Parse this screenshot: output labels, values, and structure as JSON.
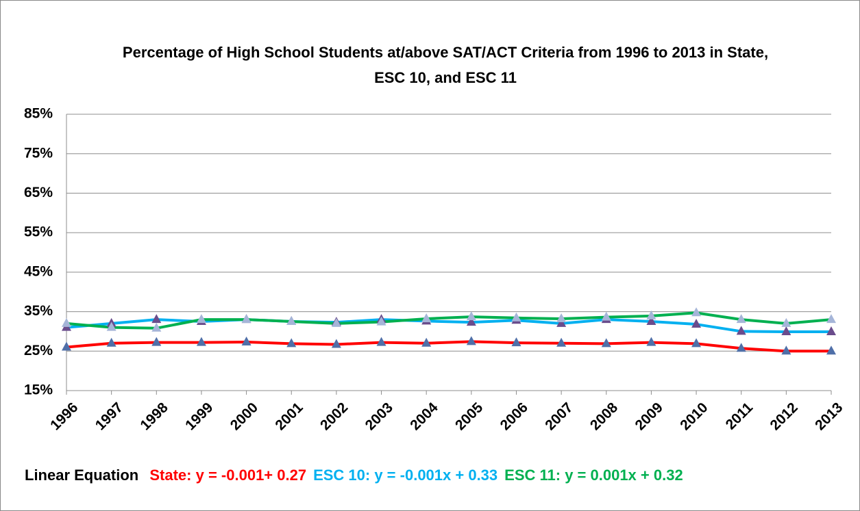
{
  "chart_data": {
    "type": "line",
    "title": "Percentage of High School Students at/above SAT/ACT Criteria from 1996 to 2013 in State, ESC 10, and ESC 11",
    "categories": [
      "1996",
      "1997",
      "1998",
      "1999",
      "2000",
      "2001",
      "2002",
      "2003",
      "2004",
      "2005",
      "2006",
      "2007",
      "2008",
      "2009",
      "2010",
      "2011",
      "2012",
      "2013"
    ],
    "series": [
      {
        "name": "State",
        "color": "#ff0000",
        "marker_color": "#4f6fa8",
        "values": [
          26,
          27,
          27.2,
          27.2,
          27.3,
          26.9,
          26.7,
          27.2,
          27,
          27.4,
          27.1,
          27,
          26.9,
          27.2,
          26.9,
          25.7,
          25,
          25
        ]
      },
      {
        "name": "ESC 10",
        "color": "#00b0f0",
        "marker_color": "#6a4c8c",
        "values": [
          31,
          32,
          33,
          32.5,
          33,
          32.5,
          32.3,
          33,
          32.6,
          32.3,
          32.8,
          32,
          33,
          32.5,
          31.8,
          30,
          29.9,
          29.9
        ]
      },
      {
        "name": "ESC 11",
        "color": "#00b050",
        "marker_color": "#a5b5d8",
        "values": [
          32,
          31,
          30.8,
          33,
          33,
          32.5,
          32,
          32.4,
          33.2,
          33.7,
          33.4,
          33.2,
          33.6,
          33.9,
          34.7,
          33,
          32,
          33
        ]
      }
    ],
    "ylim": [
      15,
      85
    ],
    "yticks": [
      {
        "value": 15,
        "label": "15%"
      },
      {
        "value": 25,
        "label": "25%"
      },
      {
        "value": 35,
        "label": "35%"
      },
      {
        "value": 45,
        "label": "45%"
      },
      {
        "value": 55,
        "label": "55%"
      },
      {
        "value": 65,
        "label": "65%"
      },
      {
        "value": 75,
        "label": "75%"
      },
      {
        "value": 85,
        "label": "85%"
      }
    ],
    "grid": true,
    "footer": {
      "label": "Linear Equation",
      "equations": [
        {
          "text": "State: y = -0.001+ 0.27",
          "color": "#ff0000"
        },
        {
          "text": "ESC 10: y = -0.001x + 0.33",
          "color": "#00b0f0"
        },
        {
          "text": "ESC 11: y = 0.001x + 0.32",
          "color": "#00b050"
        }
      ]
    }
  }
}
